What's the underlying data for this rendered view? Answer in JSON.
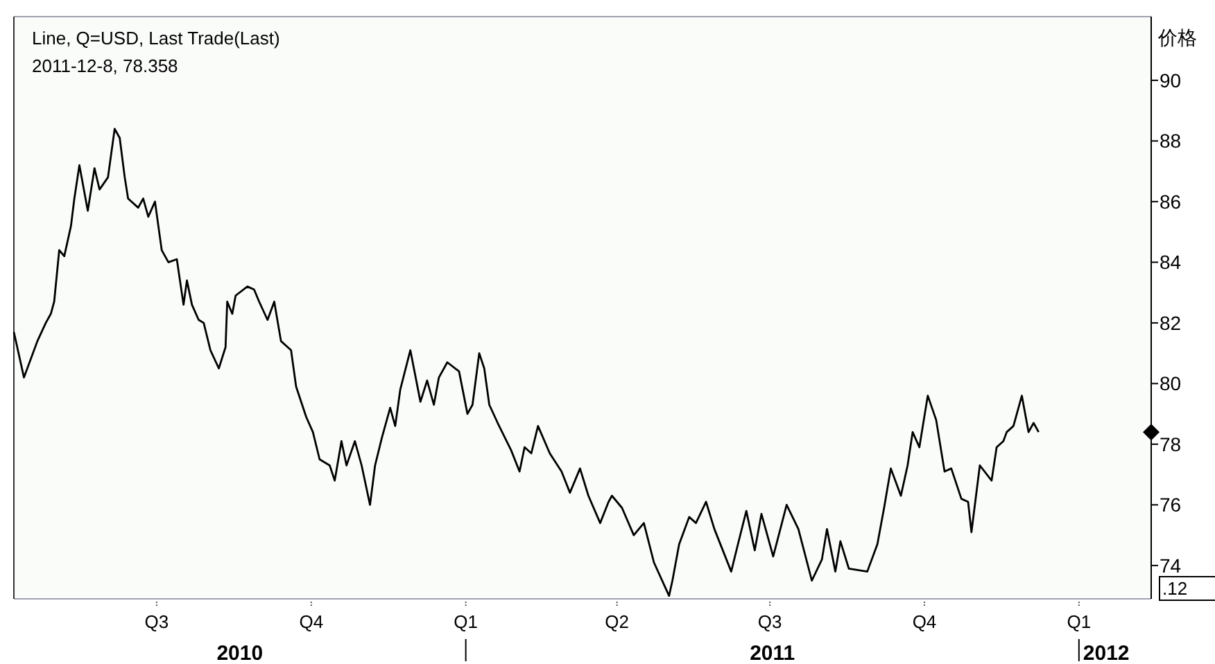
{
  "chart_data": {
    "type": "line",
    "title": "Line, Q=USD, Last Trade(Last)",
    "subtitle": "2011-12-8, 78.358",
    "ylabel": "价格",
    "series": [
      {
        "color": "#000000",
        "x": [
          "2010-04-07",
          "2010-04-13",
          "2010-04-21",
          "2010-04-26",
          "2010-04-29",
          "2010-05-01",
          "2010-05-04",
          "2010-05-07",
          "2010-05-11",
          "2010-05-13",
          "2010-05-16",
          "2010-05-21",
          "2010-05-25",
          "2010-05-28",
          "2010-06-02",
          "2010-06-06",
          "2010-06-09",
          "2010-06-12",
          "2010-06-14",
          "2010-06-20",
          "2010-06-23",
          "2010-06-26",
          "2010-06-30",
          "2010-07-04",
          "2010-07-08",
          "2010-07-13",
          "2010-07-17",
          "2010-07-19",
          "2010-07-22",
          "2010-07-26",
          "2010-07-29",
          "2010-08-02",
          "2010-08-07",
          "2010-08-11",
          "2010-08-12",
          "2010-08-15",
          "2010-08-17",
          "2010-08-24",
          "2010-08-28",
          "2010-08-31",
          "2010-09-05",
          "2010-09-09",
          "2010-09-13",
          "2010-09-19",
          "2010-09-22",
          "2010-09-28",
          "2010-10-02",
          "2010-10-06",
          "2010-10-12",
          "2010-10-15",
          "2010-10-19",
          "2010-10-22",
          "2010-10-27",
          "2010-10-31",
          "2010-11-05",
          "2010-11-08",
          "2010-11-12",
          "2010-11-17",
          "2010-11-20",
          "2010-11-23",
          "2010-11-29",
          "2010-12-05",
          "2010-12-09",
          "2010-12-13",
          "2010-12-16",
          "2010-12-21",
          "2010-12-28",
          "2011-01-02",
          "2011-01-05",
          "2011-01-09",
          "2011-01-12",
          "2011-01-15",
          "2011-01-20",
          "2011-01-28",
          "2011-02-02",
          "2011-02-05",
          "2011-02-09",
          "2011-02-13",
          "2011-02-20",
          "2011-02-27",
          "2011-03-04",
          "2011-03-10",
          "2011-03-15",
          "2011-03-22",
          "2011-03-27",
          "2011-03-29",
          "2011-04-04",
          "2011-04-11",
          "2011-04-17",
          "2011-04-23",
          "2011-05-02",
          "2011-05-04",
          "2011-05-08",
          "2011-05-14",
          "2011-05-18",
          "2011-05-24",
          "2011-05-29",
          "2011-06-08",
          "2011-06-12",
          "2011-06-17",
          "2011-06-22",
          "2011-06-26",
          "2011-07-03",
          "2011-07-11",
          "2011-07-18",
          "2011-07-26",
          "2011-08-01",
          "2011-08-04",
          "2011-08-09",
          "2011-08-12",
          "2011-08-17",
          "2011-08-28",
          "2011-09-03",
          "2011-09-07",
          "2011-09-11",
          "2011-09-17",
          "2011-09-21",
          "2011-09-24",
          "2011-09-28",
          "2011-10-03",
          "2011-10-08",
          "2011-10-13",
          "2011-10-17",
          "2011-10-23",
          "2011-10-27",
          "2011-10-29",
          "2011-11-03",
          "2011-11-10",
          "2011-11-13",
          "2011-11-17",
          "2011-11-19",
          "2011-11-23",
          "2011-11-28",
          "2011-12-02",
          "2011-12-05",
          "2011-12-08"
        ],
        "values": [
          81.7,
          80.2,
          81.4,
          82.0,
          82.3,
          82.7,
          84.4,
          84.2,
          85.2,
          86.1,
          87.2,
          85.7,
          87.1,
          86.4,
          86.8,
          88.4,
          88.1,
          86.8,
          86.1,
          85.8,
          86.1,
          85.5,
          86.0,
          84.4,
          84.0,
          84.1,
          82.6,
          83.4,
          82.6,
          82.1,
          82.0,
          81.1,
          80.5,
          81.2,
          82.7,
          82.3,
          82.9,
          83.2,
          83.1,
          82.7,
          82.1,
          82.7,
          81.4,
          81.1,
          79.9,
          78.9,
          78.4,
          77.5,
          77.3,
          76.8,
          78.1,
          77.3,
          78.1,
          77.3,
          76.0,
          77.3,
          78.2,
          79.2,
          78.6,
          79.8,
          81.1,
          79.4,
          80.1,
          79.3,
          80.2,
          80.7,
          80.4,
          79.0,
          79.3,
          81.0,
          80.5,
          79.3,
          78.7,
          77.8,
          77.1,
          77.9,
          77.7,
          78.6,
          77.7,
          77.1,
          76.4,
          77.2,
          76.3,
          75.4,
          76.1,
          76.3,
          75.9,
          75.0,
          75.4,
          74.1,
          73.0,
          73.5,
          74.7,
          75.6,
          75.4,
          76.1,
          75.2,
          73.8,
          74.7,
          75.8,
          74.5,
          75.7,
          74.3,
          76.0,
          75.2,
          73.5,
          74.2,
          75.2,
          73.8,
          74.8,
          73.9,
          73.8,
          74.7,
          75.9,
          77.2,
          76.3,
          77.3,
          78.4,
          77.9,
          79.6,
          78.8,
          77.1,
          77.2,
          76.2,
          76.1,
          75.1,
          77.3,
          76.8,
          77.9,
          78.1,
          78.4,
          78.6,
          79.6,
          78.4,
          78.7,
          78.4
        ]
      },
      {
        "type": "scatter",
        "marker": "diamond",
        "color": "#000000",
        "x": [
          "2012-02-13"
        ],
        "values": [
          78.4
        ]
      }
    ],
    "xlim": [
      "2010-04-07",
      "2012-02-13"
    ],
    "ylim": [
      72.9,
      92.1
    ],
    "xticks": [
      {
        "value": "2010-07-01",
        "label": "Q3"
      },
      {
        "value": "2010-10-01",
        "label": "Q4"
      },
      {
        "value": "2011-01-01",
        "label": "Q1"
      },
      {
        "value": "2011-04-01",
        "label": "Q2"
      },
      {
        "value": "2011-07-01",
        "label": "Q3"
      },
      {
        "value": "2011-10-01",
        "label": "Q4"
      },
      {
        "value": "2012-01-01",
        "label": "Q1"
      }
    ],
    "yticks": [
      74,
      76,
      78,
      80,
      82,
      84,
      86,
      88,
      90
    ],
    "annotations": [
      "2010",
      "2011",
      "2012",
      ".12"
    ]
  }
}
